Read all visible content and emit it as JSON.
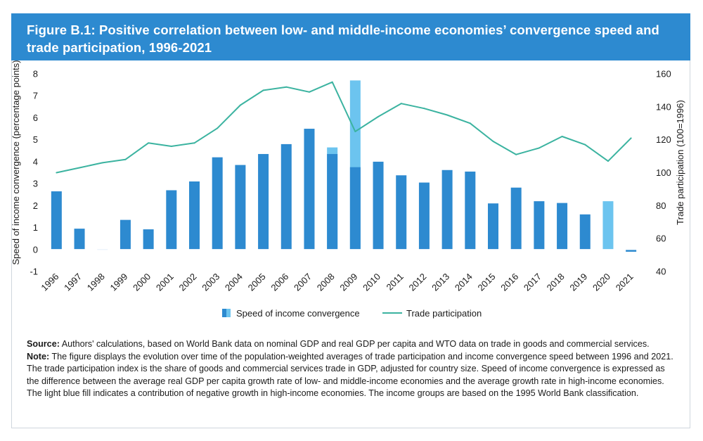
{
  "title": "Figure B.1: Positive correlation between low- and middle-income economies’ convergence speed and trade participation, 1996-2021",
  "colors": {
    "banner": "#2d8ad0",
    "bar_dark": "#2d8ad0",
    "bar_light": "#6cc4ef",
    "line": "#3bb3a0"
  },
  "chart_data": {
    "type": "bar",
    "categories": [
      "1996",
      "1997",
      "1998",
      "1999",
      "2000",
      "2001",
      "2002",
      "2003",
      "2004",
      "2005",
      "2006",
      "2007",
      "2008",
      "2009",
      "2010",
      "2011",
      "2012",
      "2013",
      "2014",
      "2015",
      "2016",
      "2017",
      "2018",
      "2019",
      "2020",
      "2021"
    ],
    "series": [
      {
        "name": "Speed of income convergence",
        "type": "bar",
        "axis": "left",
        "values": [
          2.65,
          0.95,
          0.02,
          1.35,
          0.92,
          2.7,
          3.1,
          4.2,
          3.85,
          4.35,
          4.8,
          5.5,
          4.35,
          3.75,
          4.0,
          3.38,
          3.05,
          3.62,
          3.55,
          2.1,
          2.82,
          2.2,
          2.12,
          1.6,
          0.0,
          -0.1
        ],
        "light_fill_top": [
          null,
          null,
          null,
          null,
          null,
          null,
          null,
          null,
          null,
          null,
          null,
          null,
          4.65,
          7.7,
          null,
          null,
          null,
          null,
          null,
          null,
          null,
          null,
          null,
          null,
          2.2,
          null
        ]
      },
      {
        "name": "Trade participation",
        "type": "line",
        "axis": "right",
        "values": [
          100,
          103,
          106,
          108,
          118,
          116,
          118,
          127,
          141,
          150,
          152,
          149,
          155,
          125,
          134,
          142,
          139,
          135,
          130,
          119,
          111,
          115,
          122,
          117,
          107,
          121
        ]
      }
    ],
    "y_left": {
      "label": "Speed of income convergence (percentage points)",
      "lim": [
        -1,
        8
      ],
      "ticks": [
        -1,
        0,
        1,
        2,
        3,
        4,
        5,
        6,
        7,
        8
      ]
    },
    "y_right": {
      "label": "Trade participation (100=1996)",
      "lim": [
        40,
        160
      ],
      "ticks": [
        40,
        60,
        80,
        100,
        120,
        140,
        160
      ]
    },
    "legend": {
      "position": "bottom",
      "items": [
        "Speed of income convergence",
        "Trade participation"
      ]
    },
    "grid": false
  },
  "notes": {
    "source_label": "Source:",
    "source_text": "Authors' calculations, based on World Bank data on nominal GDP and real GDP per capita and WTO data on trade in goods and commercial services.",
    "note_label": "Note:",
    "note_text": "The figure displays the evolution over time of the population-weighted averages of trade participation and income convergence speed between 1996 and 2021. The trade participation index is the share of goods and commercial services trade in GDP, adjusted for country size. Speed of income convergence is expressed as the difference between the average real GDP per capita growth rate of low- and middle-income economies and the average growth rate in high-income economies. The light blue fill indicates a contribution of negative growth in high-income economies. The income groups are based on the 1995 World Bank classification."
  }
}
